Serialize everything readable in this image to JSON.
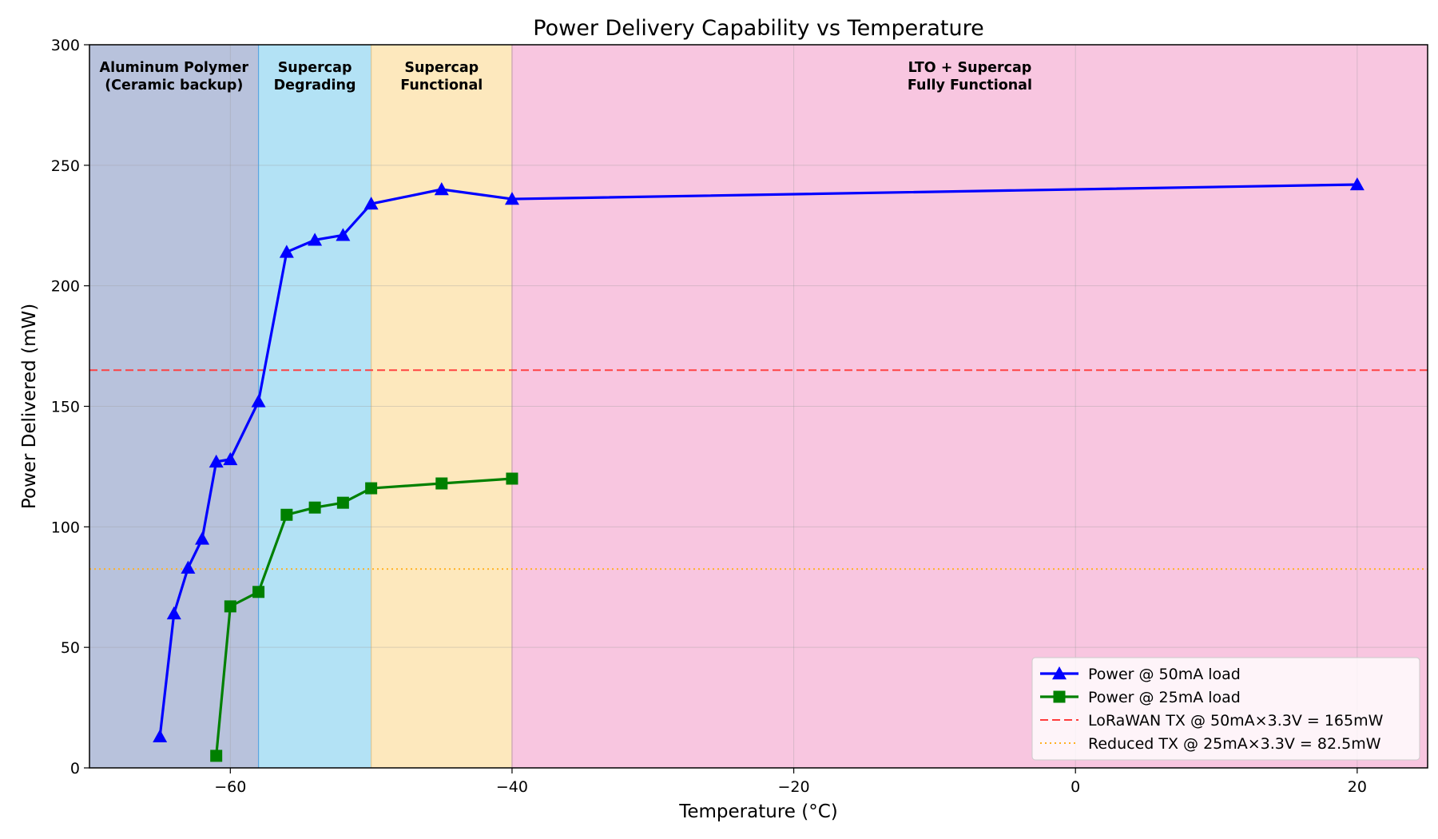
{
  "chart_data": {
    "type": "line",
    "title": "Power Delivery Capability vs Temperature",
    "xlabel": "Temperature (°C)",
    "ylabel": "Power Delivered (mW)",
    "xlim": [
      -70,
      25
    ],
    "ylim": [
      0,
      300
    ],
    "grid": true,
    "x_ticks": [
      -60,
      -40,
      -20,
      0,
      20
    ],
    "x_tick_labels": [
      "−60",
      "−40",
      "−20",
      "0",
      "20"
    ],
    "y_ticks": [
      0,
      50,
      100,
      150,
      200,
      250,
      300
    ],
    "y_tick_labels": [
      "0",
      "50",
      "100",
      "150",
      "200",
      "250",
      "300"
    ],
    "regions": [
      {
        "x0": -70,
        "x1": -58,
        "color": "#b8c2dc",
        "label_lines": [
          "Aluminum Polymer",
          "(Ceramic backup)"
        ]
      },
      {
        "x0": -58,
        "x1": -50,
        "color": "#b3e2f5",
        "label_lines": [
          "Supercap",
          "Degrading"
        ]
      },
      {
        "x0": -50,
        "x1": -40,
        "color": "#fde8bd",
        "label_lines": [
          "Supercap",
          "Functional"
        ]
      },
      {
        "x0": -40,
        "x1": 25,
        "color": "#f8c6e0",
        "label_lines": [
          "LTO + Supercap",
          "Fully Functional"
        ]
      }
    ],
    "series": [
      {
        "name": "Power @ 50mA load",
        "color": "#0000ff",
        "marker": "triangle",
        "x": [
          -65,
          -64,
          -63,
          -62,
          -61,
          -60,
          -58,
          -56,
          -54,
          -52,
          -50,
          -45,
          -40,
          20
        ],
        "values": [
          13,
          64,
          83,
          95,
          127,
          128,
          152,
          214,
          219,
          221,
          234,
          240,
          236,
          242
        ]
      },
      {
        "name": "Power @ 25mA load",
        "color": "#008000",
        "marker": "square",
        "x": [
          -61,
          -60,
          -58,
          -56,
          -54,
          -52,
          -50,
          -45,
          -40
        ],
        "values": [
          5,
          67,
          73,
          105,
          108,
          110,
          116,
          118,
          120
        ]
      }
    ],
    "reference_lines": [
      {
        "name": "LoRaWAN TX @ 50mA×3.3V = 165mW",
        "y": 165,
        "color": "#ff3b3b",
        "style": "dashed"
      },
      {
        "name": "Reduced TX @ 25mA×3.3V = 82.5mW",
        "y": 82.5,
        "color": "#ffb020",
        "style": "dotted"
      }
    ],
    "legend_position": "lower-right"
  }
}
